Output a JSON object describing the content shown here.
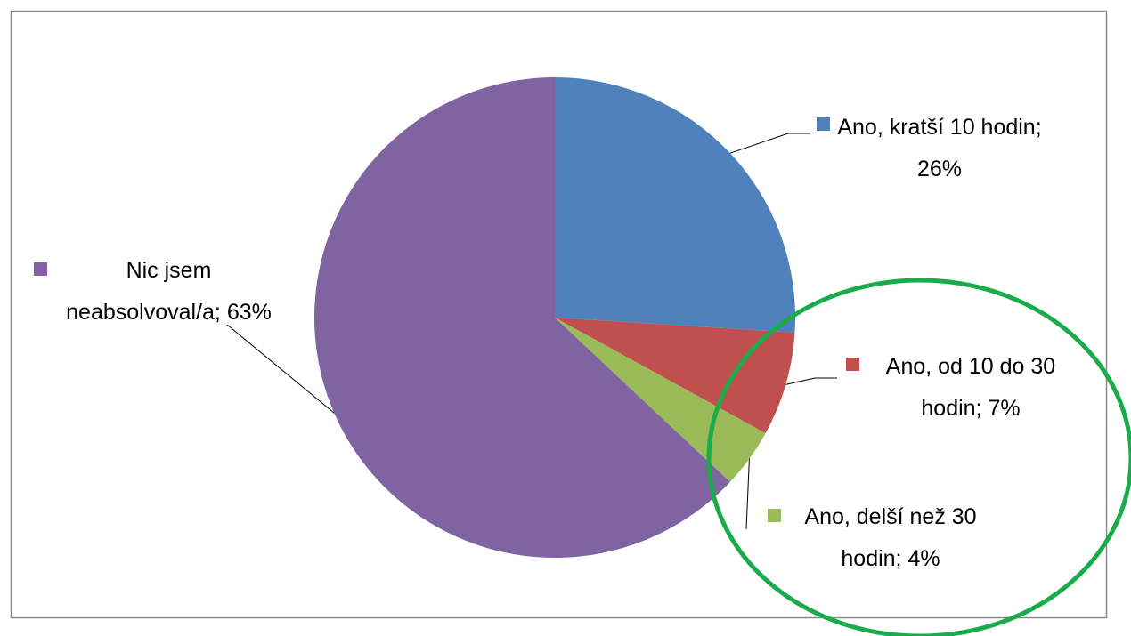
{
  "chart_data": {
    "type": "pie",
    "categories": [
      "Ano, kratší 10 hodin",
      "Ano, od 10 do 30 hodin",
      "Ano, delší než 30 hodin",
      "Nic jsem neabsolvoval/a"
    ],
    "values": [
      26,
      7,
      4,
      63
    ],
    "value_labels": [
      "Ano, kratší 10 hodin; 26%",
      "Ano, od 10 do 30 hodin; 7%",
      "Ano, delší než 30 hodin; 4%",
      "Nic jsem neabsolvoval/a; 63%"
    ],
    "colors": [
      "#4f81bd",
      "#c0504d",
      "#9bbb59",
      "#8064a2"
    ]
  }
}
